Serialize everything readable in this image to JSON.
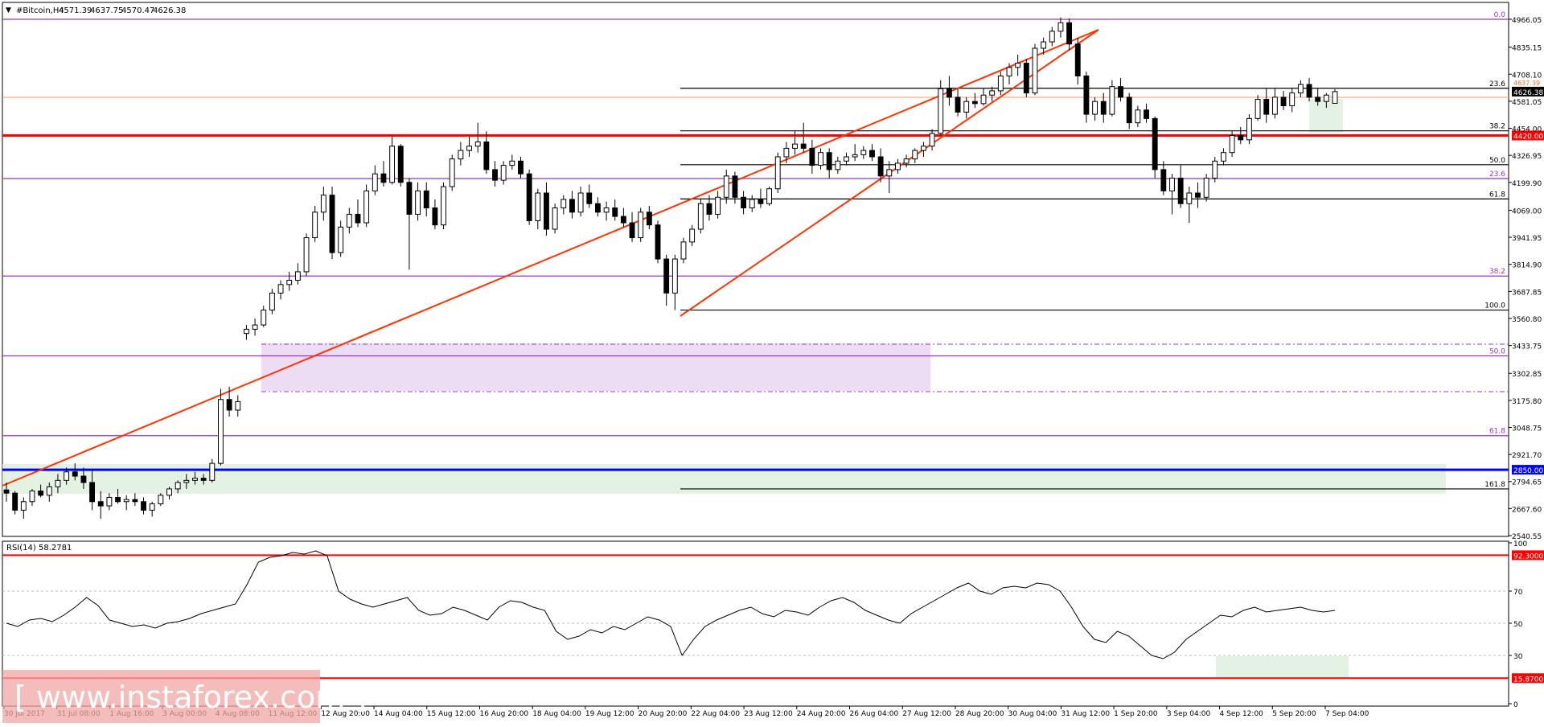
{
  "chart_data": [
    {
      "type": "candlestick",
      "title": "#Bitcoin,H4",
      "ohlc_readout": [
        "4571.39",
        "4637.75",
        "4570.47",
        "4626.38"
      ],
      "ylim": [
        2540.55,
        5000
      ],
      "price_ticks": [
        "4966.05",
        "4835.15",
        "4708.10",
        "4581.05",
        "4454.00",
        "4326.95",
        "4199.90",
        "4069.00",
        "3941.95",
        "3814.90",
        "3687.85",
        "3560.80",
        "3433.75",
        "3302.85",
        "3175.80",
        "3048.75",
        "2921.70",
        "2794.65",
        "2667.60",
        "2540.55"
      ],
      "x_ticks": [
        "30 Jul 2017",
        "31 Jul 08:00",
        "1 Aug 16:00",
        "3 Aug 00:00",
        "4 Aug 08:00",
        "11 Aug 12:00",
        "12 Aug 20:00",
        "14 Aug 04:00",
        "15 Aug 12:00",
        "16 Aug 20:00",
        "18 Aug 04:00",
        "19 Aug 12:00",
        "20 Aug 20:00",
        "22 Aug 04:00",
        "23 Aug 12:00",
        "24 Aug 20:00",
        "26 Aug 04:00",
        "27 Aug 12:00",
        "28 Aug 20:00",
        "30 Aug 04:00",
        "31 Aug 12:00",
        "1 Sep 20:00",
        "3 Sep 04:00",
        "4 Sep 12:00",
        "5 Sep 20:00",
        "7 Sep 04:00"
      ],
      "current_price": "4626.38",
      "ask_price": "4637.39",
      "horizontal_levels": [
        {
          "price": 4420.0,
          "label": "4420.00",
          "color": "#ff0000"
        },
        {
          "price": 2850.0,
          "label": "2850.00",
          "color": "#0000ff"
        }
      ],
      "fibonacci_long": {
        "color": "#9933cc",
        "levels": [
          {
            "ratio": "0.0",
            "price": 4966.05
          },
          {
            "ratio": "23.6",
            "price": 4218
          },
          {
            "ratio": "38.2",
            "price": 3760
          },
          {
            "ratio": "50.0",
            "price": 3385
          },
          {
            "ratio": "61.8",
            "price": 3010
          }
        ]
      },
      "fibonacci_short": {
        "color": "#000000",
        "levels": [
          {
            "ratio": "23.6",
            "price": 4642
          },
          {
            "ratio": "38.2",
            "price": 4442
          },
          {
            "ratio": "50.0",
            "price": 4283
          },
          {
            "ratio": "61.8",
            "price": 4122
          },
          {
            "ratio": "100.0",
            "price": 3600
          },
          {
            "ratio": "161.8",
            "price": 2760
          }
        ]
      },
      "candles": [
        [
          2755,
          2790,
          2700,
          2740
        ],
        [
          2740,
          2750,
          2640,
          2660
        ],
        [
          2660,
          2720,
          2620,
          2700
        ],
        [
          2700,
          2760,
          2680,
          2750
        ],
        [
          2750,
          2780,
          2720,
          2730
        ],
        [
          2730,
          2790,
          2700,
          2770
        ],
        [
          2770,
          2830,
          2740,
          2800
        ],
        [
          2800,
          2860,
          2780,
          2840
        ],
        [
          2840,
          2880,
          2800,
          2820
        ],
        [
          2820,
          2860,
          2760,
          2790
        ],
        [
          2790,
          2850,
          2660,
          2700
        ],
        [
          2700,
          2750,
          2620,
          2680
        ],
        [
          2680,
          2740,
          2660,
          2720
        ],
        [
          2720,
          2760,
          2690,
          2700
        ],
        [
          2700,
          2730,
          2660,
          2710
        ],
        [
          2710,
          2740,
          2680,
          2700
        ],
        [
          2700,
          2720,
          2640,
          2660
        ],
        [
          2660,
          2700,
          2630,
          2690
        ],
        [
          2690,
          2740,
          2680,
          2730
        ],
        [
          2730,
          2770,
          2710,
          2760
        ],
        [
          2760,
          2800,
          2740,
          2790
        ],
        [
          2790,
          2830,
          2760,
          2800
        ],
        [
          2800,
          2840,
          2780,
          2810
        ],
        [
          2810,
          2830,
          2780,
          2800
        ],
        [
          2800,
          2900,
          2790,
          2880
        ],
        [
          2880,
          3230,
          2870,
          3180
        ],
        [
          3180,
          3240,
          3100,
          3130
        ],
        [
          3130,
          3200,
          3100,
          3170
        ],
        [
          3490,
          3530,
          3460,
          3510
        ],
        [
          3510,
          3560,
          3480,
          3530
        ],
        [
          3530,
          3620,
          3520,
          3600
        ],
        [
          3600,
          3700,
          3580,
          3680
        ],
        [
          3680,
          3740,
          3650,
          3720
        ],
        [
          3720,
          3780,
          3690,
          3740
        ],
        [
          3740,
          3820,
          3720,
          3780
        ],
        [
          3780,
          3960,
          3760,
          3940
        ],
        [
          3940,
          4090,
          3920,
          4060
        ],
        [
          4060,
          4180,
          4020,
          4140
        ],
        [
          4140,
          4180,
          3840,
          3870
        ],
        [
          3870,
          4020,
          3850,
          3990
        ],
        [
          3990,
          4080,
          3960,
          4050
        ],
        [
          4050,
          4120,
          3990,
          4010
        ],
        [
          4010,
          4190,
          3990,
          4160
        ],
        [
          4160,
          4280,
          4140,
          4240
        ],
        [
          4240,
          4300,
          4180,
          4200
        ],
        [
          4200,
          4420,
          4190,
          4370
        ],
        [
          4370,
          4380,
          4180,
          4200
        ],
        [
          4200,
          4220,
          3790,
          4050
        ],
        [
          4050,
          4200,
          4020,
          4160
        ],
        [
          4160,
          4200,
          4040,
          4080
        ],
        [
          4080,
          4120,
          3980,
          4000
        ],
        [
          4000,
          4200,
          3980,
          4180
        ],
        [
          4180,
          4330,
          4160,
          4310
        ],
        [
          4310,
          4390,
          4280,
          4350
        ],
        [
          4350,
          4420,
          4320,
          4370
        ],
        [
          4370,
          4480,
          4340,
          4390
        ],
        [
          4390,
          4440,
          4240,
          4260
        ],
        [
          4260,
          4300,
          4180,
          4210
        ],
        [
          4210,
          4300,
          4190,
          4280
        ],
        [
          4280,
          4330,
          4260,
          4300
        ],
        [
          4300,
          4320,
          4220,
          4240
        ],
        [
          4240,
          4260,
          4000,
          4020
        ],
        [
          4020,
          4170,
          3980,
          4150
        ],
        [
          4150,
          4200,
          3950,
          3980
        ],
        [
          3980,
          4100,
          3960,
          4080
        ],
        [
          4080,
          4140,
          4050,
          4120
        ],
        [
          4120,
          4160,
          4030,
          4060
        ],
        [
          4060,
          4180,
          4040,
          4150
        ],
        [
          4150,
          4190,
          4080,
          4100
        ],
        [
          4100,
          4130,
          4040,
          4060
        ],
        [
          4060,
          4110,
          4020,
          4080
        ],
        [
          4080,
          4120,
          4020,
          4040
        ],
        [
          4040,
          4080,
          3990,
          4010
        ],
        [
          4010,
          4060,
          3920,
          3940
        ],
        [
          3940,
          4080,
          3920,
          4060
        ],
        [
          4060,
          4090,
          3980,
          4000
        ],
        [
          4000,
          4020,
          3820,
          3840
        ],
        [
          3840,
          3860,
          3620,
          3680
        ],
        [
          3680,
          3860,
          3600,
          3840
        ],
        [
          3840,
          3940,
          3820,
          3920
        ],
        [
          3920,
          4000,
          3900,
          3980
        ],
        [
          3980,
          4120,
          3960,
          4100
        ],
        [
          4100,
          4140,
          4020,
          4050
        ],
        [
          4050,
          4160,
          4030,
          4130
        ],
        [
          4130,
          4260,
          4100,
          4230
        ],
        [
          4230,
          4250,
          4100,
          4130
        ],
        [
          4130,
          4160,
          4050,
          4080
        ],
        [
          4080,
          4140,
          4060,
          4120
        ],
        [
          4120,
          4170,
          4080,
          4100
        ],
        [
          4100,
          4180,
          4090,
          4170
        ],
        [
          4170,
          4340,
          4150,
          4320
        ],
        [
          4320,
          4390,
          4290,
          4360
        ],
        [
          4360,
          4440,
          4330,
          4380
        ],
        [
          4380,
          4480,
          4340,
          4360
        ],
        [
          4360,
          4400,
          4240,
          4280
        ],
        [
          4280,
          4360,
          4260,
          4340
        ],
        [
          4340,
          4360,
          4220,
          4260
        ],
        [
          4260,
          4320,
          4240,
          4300
        ],
        [
          4300,
          4340,
          4280,
          4320
        ],
        [
          4320,
          4380,
          4300,
          4330
        ],
        [
          4330,
          4370,
          4310,
          4350
        ],
        [
          4350,
          4380,
          4300,
          4320
        ],
        [
          4320,
          4360,
          4200,
          4230
        ],
        [
          4230,
          4300,
          4150,
          4260
        ],
        [
          4260,
          4310,
          4240,
          4290
        ],
        [
          4290,
          4330,
          4270,
          4310
        ],
        [
          4310,
          4360,
          4290,
          4350
        ],
        [
          4350,
          4390,
          4320,
          4370
        ],
        [
          4370,
          4450,
          4350,
          4430
        ],
        [
          4430,
          4680,
          4420,
          4640
        ],
        [
          4640,
          4700,
          4560,
          4600
        ],
        [
          4600,
          4640,
          4510,
          4530
        ],
        [
          4530,
          4600,
          4500,
          4580
        ],
        [
          4580,
          4620,
          4550,
          4570
        ],
        [
          4570,
          4640,
          4560,
          4610
        ],
        [
          4610,
          4650,
          4580,
          4630
        ],
        [
          4630,
          4720,
          4610,
          4700
        ],
        [
          4700,
          4760,
          4660,
          4740
        ],
        [
          4740,
          4800,
          4700,
          4760
        ],
        [
          4760,
          4780,
          4600,
          4620
        ],
        [
          4620,
          4850,
          4610,
          4830
        ],
        [
          4830,
          4880,
          4800,
          4860
        ],
        [
          4860,
          4930,
          4840,
          4910
        ],
        [
          4910,
          4975,
          4880,
          4950
        ],
        [
          4950,
          4970,
          4820,
          4850
        ],
        [
          4850,
          4880,
          4660,
          4700
        ],
        [
          4700,
          4720,
          4480,
          4520
        ],
        [
          4520,
          4600,
          4490,
          4580
        ],
        [
          4580,
          4620,
          4480,
          4520
        ],
        [
          4520,
          4680,
          4510,
          4650
        ],
        [
          4650,
          4690,
          4580,
          4600
        ],
        [
          4600,
          4620,
          4450,
          4480
        ],
        [
          4480,
          4560,
          4460,
          4540
        ],
        [
          4540,
          4570,
          4480,
          4500
        ],
        [
          4500,
          4510,
          4220,
          4260
        ],
        [
          4260,
          4300,
          4140,
          4160
        ],
        [
          4160,
          4240,
          4050,
          4220
        ],
        [
          4220,
          4280,
          4080,
          4100
        ],
        [
          4100,
          4180,
          4010,
          4150
        ],
        [
          4150,
          4200,
          4080,
          4130
        ],
        [
          4130,
          4240,
          4110,
          4220
        ],
        [
          4220,
          4320,
          4200,
          4300
        ],
        [
          4300,
          4360,
          4280,
          4340
        ],
        [
          4340,
          4440,
          4320,
          4420
        ],
        [
          4420,
          4460,
          4380,
          4400
        ],
        [
          4400,
          4520,
          4380,
          4500
        ],
        [
          4500,
          4610,
          4490,
          4590
        ],
        [
          4590,
          4640,
          4480,
          4520
        ],
        [
          4520,
          4640,
          4500,
          4600
        ],
        [
          4600,
          4630,
          4540,
          4560
        ],
        [
          4560,
          4640,
          4530,
          4620
        ],
        [
          4620,
          4680,
          4600,
          4660
        ],
        [
          4660,
          4690,
          4580,
          4600
        ],
        [
          4600,
          4640,
          4560,
          4580
        ],
        [
          4580,
          4620,
          4550,
          4610
        ],
        [
          4571.39,
          4637.75,
          4570.47,
          4626.38
        ]
      ]
    },
    {
      "type": "line",
      "title": "RSI(14) 58.2781",
      "ylim": [
        0,
        100
      ],
      "y_ticks": [
        "100",
        "70",
        "50",
        "30",
        "0"
      ],
      "levels": [
        {
          "value": 92.3,
          "label": "92.3000",
          "color": "#ff0000"
        },
        {
          "value": 15.87,
          "label": "15.8700",
          "color": "#ff0000"
        }
      ],
      "values": [
        50,
        48,
        52,
        53,
        51,
        55,
        60,
        66,
        61,
        52,
        50,
        48,
        49,
        47,
        50,
        51,
        53,
        56,
        58,
        60,
        62,
        74,
        88,
        91,
        92,
        94,
        93,
        95,
        92,
        70,
        65,
        62,
        60,
        62,
        64,
        66,
        58,
        55,
        56,
        60,
        58,
        55,
        52,
        60,
        64,
        63,
        60,
        58,
        45,
        40,
        42,
        46,
        44,
        48,
        46,
        50,
        54,
        52,
        48,
        30,
        40,
        48,
        52,
        55,
        58,
        60,
        56,
        54,
        58,
        57,
        55,
        60,
        64,
        66,
        63,
        58,
        55,
        52,
        50,
        56,
        60,
        64,
        68,
        72,
        75,
        70,
        68,
        72,
        73,
        72,
        75,
        74,
        70,
        60,
        48,
        40,
        38,
        45,
        42,
        36,
        30,
        28,
        32,
        40,
        45,
        50,
        55,
        54,
        58,
        60,
        57,
        58,
        59,
        60,
        58,
        57,
        58
      ]
    }
  ],
  "watermark": "[ www.instaforex.com ]"
}
